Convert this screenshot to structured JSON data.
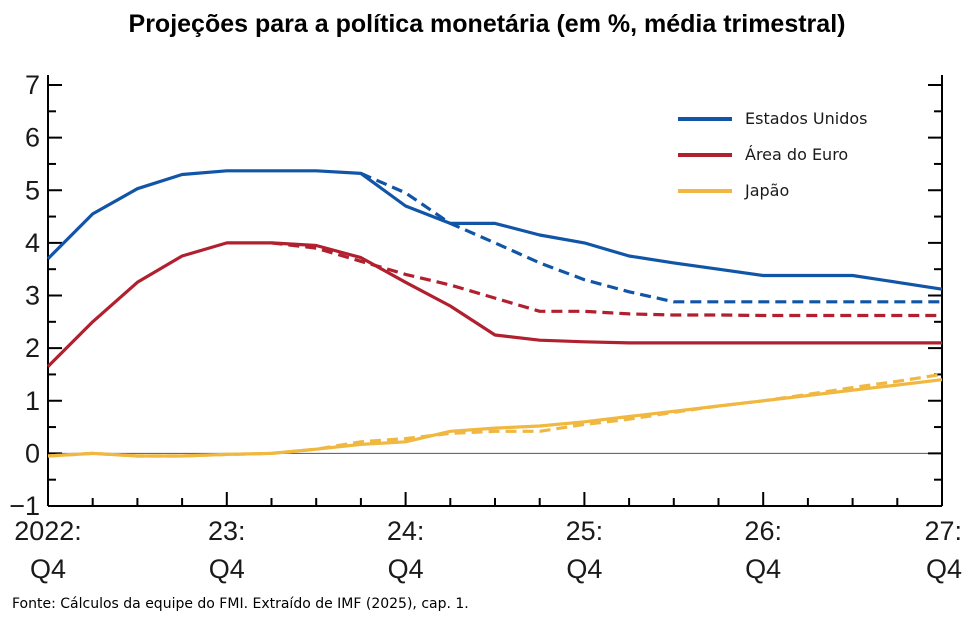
{
  "chart_data": {
    "type": "line",
    "title": "Projeções para a política monetária (em %, média trimestral)",
    "ylim": [
      -1,
      7
    ],
    "yticks": [
      "−1",
      "0",
      "1",
      "2",
      "3",
      "4",
      "5",
      "6",
      "7"
    ],
    "xlim": [
      0,
      20
    ],
    "xticks": [
      {
        "top": "2022:",
        "bottom": "Q4"
      },
      {
        "top": "23:",
        "bottom": "Q4"
      },
      {
        "top": "24:",
        "bottom": "Q4"
      },
      {
        "top": "25:",
        "bottom": "Q4"
      },
      {
        "top": "26:",
        "bottom": "Q4"
      },
      {
        "top": "27:",
        "bottom": "Q4"
      }
    ],
    "x": [
      0,
      1,
      2,
      3,
      4,
      5,
      6,
      7,
      8,
      9,
      10,
      11,
      12,
      13,
      14,
      15,
      16,
      17,
      18,
      19,
      20
    ],
    "legend_position": "top-right",
    "series": [
      {
        "name": "Estados Unidos",
        "color": "#1155a6",
        "style": "solid",
        "values": [
          3.7,
          4.55,
          5.03,
          5.3,
          5.37,
          5.37,
          5.37,
          5.32,
          4.7,
          4.37,
          4.37,
          4.15,
          4.0,
          3.75,
          3.62,
          3.5,
          3.38,
          3.38,
          3.38,
          3.25,
          3.12
        ]
      },
      {
        "name": "",
        "color": "#1155a6",
        "style": "dashed",
        "values": [
          null,
          null,
          null,
          null,
          null,
          null,
          null,
          5.32,
          4.95,
          4.37,
          4.0,
          3.62,
          3.3,
          3.07,
          2.88,
          2.88,
          2.88,
          2.88,
          2.88,
          2.88,
          2.88
        ]
      },
      {
        "name": "Área do Euro",
        "color": "#b0202e",
        "style": "solid",
        "values": [
          1.65,
          2.5,
          3.25,
          3.75,
          4.0,
          4.0,
          3.95,
          3.72,
          3.25,
          2.8,
          2.25,
          2.15,
          2.12,
          2.1,
          2.1,
          2.1,
          2.1,
          2.1,
          2.1,
          2.1,
          2.1
        ]
      },
      {
        "name": "",
        "color": "#b0202e",
        "style": "dashed",
        "values": [
          null,
          null,
          null,
          null,
          null,
          4.0,
          3.9,
          3.65,
          3.4,
          3.2,
          2.95,
          2.7,
          2.7,
          2.65,
          2.63,
          2.63,
          2.62,
          2.62,
          2.62,
          2.62,
          2.62
        ]
      },
      {
        "name": "Japão",
        "color": "#f0b840",
        "style": "solid",
        "values": [
          -0.05,
          0.0,
          -0.05,
          -0.05,
          -0.02,
          0.0,
          0.08,
          0.17,
          0.22,
          0.42,
          0.48,
          0.52,
          0.6,
          0.7,
          0.8,
          0.9,
          1.0,
          1.1,
          1.2,
          1.3,
          1.4
        ]
      },
      {
        "name": "",
        "color": "#f0b840",
        "style": "dashed",
        "values": [
          -0.05,
          0.0,
          -0.05,
          -0.05,
          -0.02,
          0.0,
          0.08,
          0.22,
          0.28,
          0.38,
          0.42,
          0.42,
          0.55,
          0.65,
          0.78,
          0.9,
          1.0,
          1.12,
          1.25,
          1.37,
          1.5
        ]
      }
    ],
    "zero_line": true
  },
  "source": "Fonte: Cálculos da equipe do FMI. Extraído de IMF (2025), cap. 1."
}
